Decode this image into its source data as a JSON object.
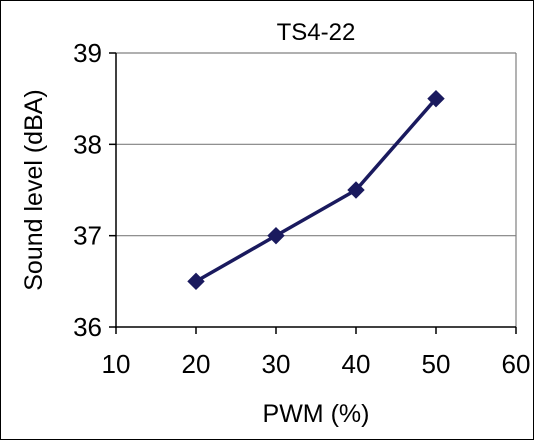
{
  "chart_data": {
    "type": "line",
    "title": "TS4-22",
    "xlabel": "PWM (%)",
    "ylabel": "Sound level (dBA)",
    "xlim": [
      10,
      60
    ],
    "ylim": [
      36,
      39
    ],
    "xticks": [
      10,
      20,
      30,
      40,
      50,
      60
    ],
    "yticks": [
      36,
      37,
      38,
      39
    ],
    "grid": "horizontal",
    "series": [
      {
        "x": [
          20,
          30,
          40,
          50
        ],
        "y": [
          36.5,
          37.0,
          37.5,
          38.5
        ],
        "color": "#1a1a5e",
        "marker": "diamond"
      }
    ]
  }
}
